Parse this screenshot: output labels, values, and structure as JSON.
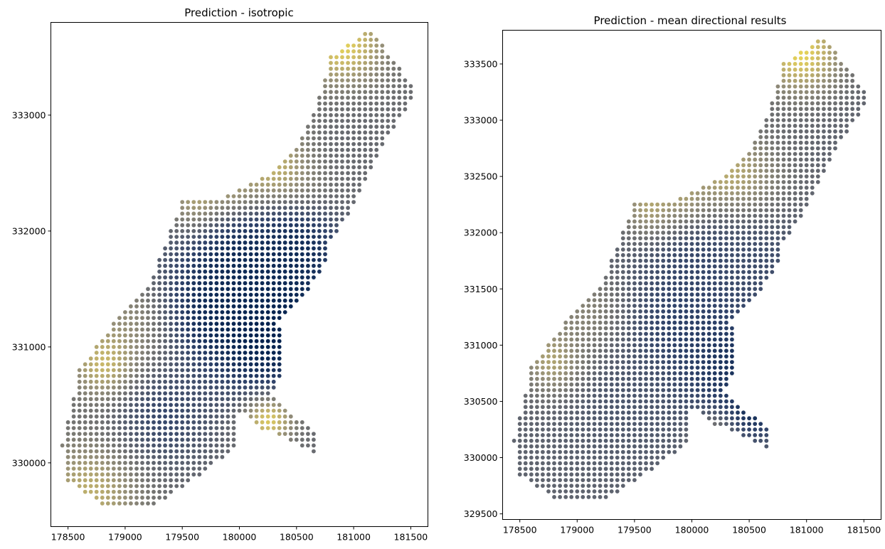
{
  "figure": {
    "background": "#ffffff"
  },
  "chart_data": [
    {
      "type": "scatter",
      "title": "Prediction - isotropic",
      "xlabel": "",
      "ylabel": "",
      "xlim": [
        178350,
        181650
      ],
      "ylim": [
        329450,
        333800
      ],
      "xticks": [
        178500,
        179000,
        179500,
        180000,
        180500,
        181000,
        181500
      ],
      "yticks": [
        330000,
        331000,
        332000,
        333000
      ],
      "grid": false,
      "legend": "none",
      "point_spacing": 50,
      "colormap": "cividis",
      "colormap_stops": [
        "#00204d",
        "#31446b",
        "#666970",
        "#958f78",
        "#cbba69",
        "#ffea46"
      ],
      "value_range": [
        0,
        1
      ],
      "outline": [
        [
          178450,
          330150
        ],
        [
          178500,
          329850
        ],
        [
          178800,
          329650
        ],
        [
          179300,
          329650
        ],
        [
          179600,
          329850
        ],
        [
          180000,
          330150
        ],
        [
          180000,
          330450
        ],
        [
          180200,
          330300
        ],
        [
          180450,
          330200
        ],
        [
          180700,
          330050
        ],
        [
          180700,
          330250
        ],
        [
          180500,
          330400
        ],
        [
          180300,
          330600
        ],
        [
          180350,
          330700
        ],
        [
          180400,
          331000
        ],
        [
          180350,
          331200
        ],
        [
          180550,
          331400
        ],
        [
          180750,
          331700
        ],
        [
          180800,
          331900
        ],
        [
          181000,
          332200
        ],
        [
          181300,
          332800
        ],
        [
          181550,
          333200
        ],
        [
          181300,
          333550
        ],
        [
          181150,
          333750
        ],
        [
          180800,
          333500
        ],
        [
          180700,
          333150
        ],
        [
          180500,
          332700
        ],
        [
          180300,
          332500
        ],
        [
          179900,
          332300
        ],
        [
          179500,
          332250
        ],
        [
          179400,
          332000
        ],
        [
          179200,
          331500
        ],
        [
          178900,
          331200
        ],
        [
          178600,
          330800
        ]
      ],
      "hotspots": [
        [
          180250,
          330400,
          1.0,
          150
        ],
        [
          179950,
          332250,
          0.95,
          150
        ],
        [
          180300,
          332450,
          0.9,
          300
        ],
        [
          179200,
          331200,
          0.7,
          300
        ],
        [
          178850,
          330850,
          0.85,
          200
        ],
        [
          180900,
          333600,
          0.9,
          250
        ],
        [
          178700,
          329750,
          0.75,
          300
        ],
        [
          179700,
          332200,
          0.9,
          200
        ]
      ],
      "lows": [
        [
          180350,
          331300,
          0.0,
          400
        ],
        [
          179800,
          331300,
          0.05,
          400
        ],
        [
          180200,
          331100,
          0.0,
          300
        ],
        [
          179350,
          330400,
          0.2,
          300
        ],
        [
          180000,
          331750,
          0.05,
          350
        ],
        [
          180500,
          331850,
          0.05,
          300
        ],
        [
          180950,
          332750,
          0.4,
          300
        ]
      ],
      "base_value": 0.42,
      "notes_pixel_free": true
    },
    {
      "type": "scatter",
      "title": "Prediction - mean directional results",
      "xlabel": "",
      "ylabel": "",
      "xlim": [
        178350,
        181650
      ],
      "ylim": [
        329450,
        333800
      ],
      "xticks": [
        178500,
        179000,
        179500,
        180000,
        180500,
        181000,
        181500
      ],
      "yticks": [
        329500,
        330000,
        330500,
        331000,
        331500,
        332000,
        332500,
        333000,
        333500
      ],
      "grid": false,
      "legend": "none",
      "point_spacing": 50,
      "colormap": "cividis",
      "colormap_stops": [
        "#00204d",
        "#31446b",
        "#666970",
        "#958f78",
        "#cbba69",
        "#ffea46"
      ],
      "value_range": [
        0,
        1
      ],
      "outline": [
        [
          178450,
          330150
        ],
        [
          178500,
          329850
        ],
        [
          178800,
          329650
        ],
        [
          179300,
          329650
        ],
        [
          179600,
          329850
        ],
        [
          180000,
          330150
        ],
        [
          180000,
          330450
        ],
        [
          180200,
          330300
        ],
        [
          180450,
          330200
        ],
        [
          180700,
          330050
        ],
        [
          180700,
          330250
        ],
        [
          180500,
          330400
        ],
        [
          180300,
          330600
        ],
        [
          180350,
          330700
        ],
        [
          180400,
          331000
        ],
        [
          180350,
          331200
        ],
        [
          180550,
          331400
        ],
        [
          180750,
          331700
        ],
        [
          180800,
          331900
        ],
        [
          181000,
          332200
        ],
        [
          181300,
          332800
        ],
        [
          181550,
          333200
        ],
        [
          181300,
          333550
        ],
        [
          181150,
          333750
        ],
        [
          180800,
          333500
        ],
        [
          180700,
          333150
        ],
        [
          180500,
          332700
        ],
        [
          180300,
          332500
        ],
        [
          179900,
          332300
        ],
        [
          179500,
          332250
        ],
        [
          179400,
          332000
        ],
        [
          179200,
          331500
        ],
        [
          178900,
          331200
        ],
        [
          178600,
          330800
        ]
      ],
      "hotspots": [
        [
          179950,
          332250,
          0.95,
          150
        ],
        [
          179700,
          332200,
          0.85,
          200
        ],
        [
          180300,
          332450,
          0.8,
          300
        ],
        [
          178850,
          330850,
          0.85,
          200
        ],
        [
          179200,
          331200,
          0.65,
          300
        ],
        [
          180950,
          333600,
          0.9,
          250
        ],
        [
          180200,
          330250,
          0.7,
          150
        ]
      ],
      "lows": [
        [
          180300,
          330900,
          0.0,
          350
        ],
        [
          180550,
          330450,
          0.05,
          200
        ],
        [
          179900,
          331100,
          0.15,
          400
        ],
        [
          179400,
          330500,
          0.3,
          400
        ],
        [
          180100,
          331700,
          0.2,
          400
        ],
        [
          180600,
          331700,
          0.25,
          300
        ]
      ],
      "base_value": 0.38,
      "notes_pixel_free": true
    }
  ]
}
